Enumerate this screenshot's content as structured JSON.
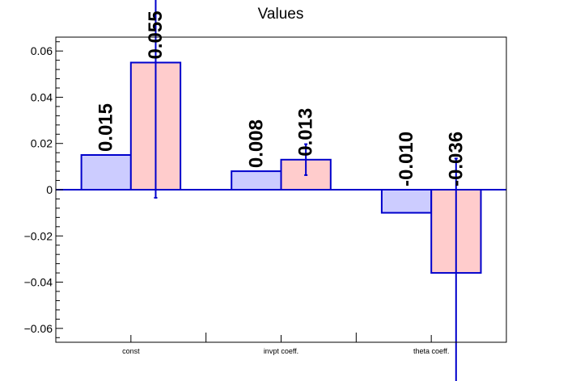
{
  "chart_data": {
    "type": "bar",
    "title": "Values",
    "xlabel": "",
    "ylabel": "",
    "ylim": [
      -0.066,
      0.066
    ],
    "yticks": [
      -0.06,
      -0.04,
      -0.02,
      0,
      0.02,
      0.04,
      0.06
    ],
    "ytick_labels": [
      "−0.06",
      "−0.04",
      "−0.02",
      "0",
      "0.02",
      "0.04",
      "0.06"
    ],
    "categories": [
      "const",
      "invpt coeff.",
      "theta coeff."
    ],
    "grid": false,
    "series": [
      {
        "values": [
          0.015,
          0.008,
          -0.01
        ],
        "labels": [
          "0.015",
          "0.008",
          "-0.010"
        ],
        "errors": [
          null,
          null,
          null
        ],
        "fill": "#ccccff",
        "stroke": "#0000cc"
      },
      {
        "values": [
          0.055,
          0.013,
          -0.036
        ],
        "labels": [
          "0.055",
          "0.013",
          "-0.036"
        ],
        "errors": [
          0.0585,
          0.0067,
          0.0495
        ],
        "fill": "#ffcccc",
        "stroke": "#0000cc"
      }
    ],
    "colors": {
      "axis": "#000000",
      "zero_line": "#0000cc",
      "error_bar": "#0000cc",
      "label": "#000000"
    }
  }
}
